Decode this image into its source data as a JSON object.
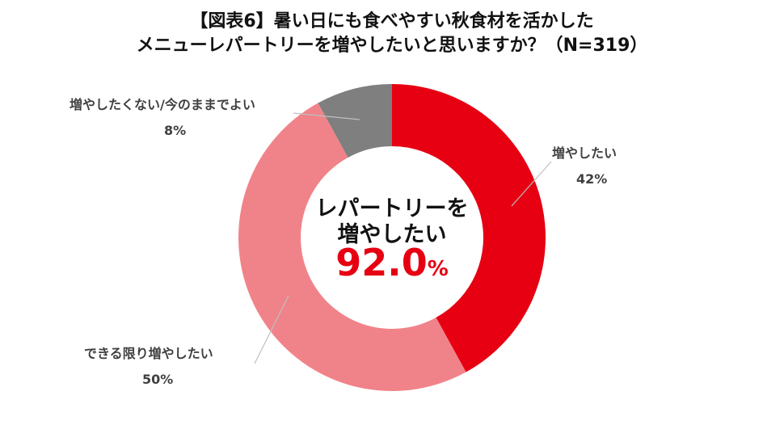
{
  "title_line1": "【図表6】暑い日にも食べやすい秋食材を活かした",
  "title_line2": "メニューレパートリーを増やしたいと思いますか？（N=319）",
  "center": {
    "line1": "レパートリーを",
    "line2": "増やしたい",
    "value": "92.0",
    "unit": "%"
  },
  "chart_data": {
    "type": "pie",
    "donut": true,
    "categories": [
      "増やしたい",
      "できる限り増やしたい",
      "増やしたくない/今のままでよい"
    ],
    "values": [
      42,
      50,
      8
    ],
    "value_labels": [
      "42%",
      "50%",
      "8%"
    ],
    "colors": [
      "#e60012",
      "#f08389",
      "#7f7f7f"
    ],
    "title": "【図表6】暑い日にも食べやすい秋食材を活かした メニューレパートリーを増やしたいと思いますか？（N=319）"
  }
}
